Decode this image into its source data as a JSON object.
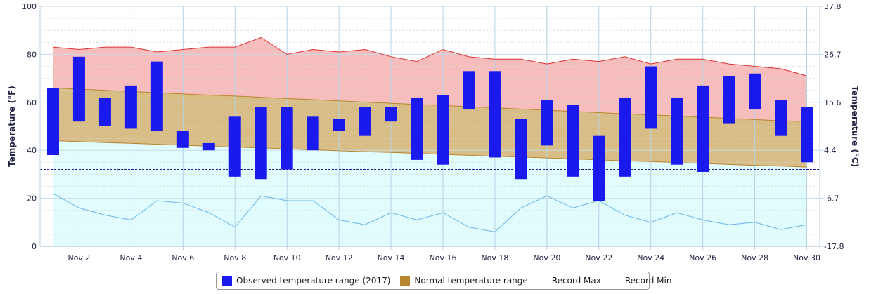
{
  "chart_data": {
    "type": "bar",
    "title": "",
    "ylabel_left": "Temperature (°F)",
    "ylabel_right": "Temperature (°C)",
    "ylim": [
      0,
      100
    ],
    "yticks_left": [
      0,
      20,
      40,
      60,
      80,
      100
    ],
    "yticks_right": [
      "-17.8",
      "-6.7",
      "4.4",
      "15.6",
      "26.7",
      "37.8"
    ],
    "x_tick_labels": [
      "Nov 2",
      "Nov 4",
      "Nov 6",
      "Nov 8",
      "Nov 10",
      "Nov 12",
      "Nov 14",
      "Nov 16",
      "Nov 18",
      "Nov 20",
      "Nov 22",
      "Nov 24",
      "Nov 26",
      "Nov 28",
      "Nov 30"
    ],
    "x_tick_days": [
      2,
      4,
      6,
      8,
      10,
      12,
      14,
      16,
      18,
      20,
      22,
      24,
      26,
      28,
      30
    ],
    "days": [
      1,
      2,
      3,
      4,
      5,
      6,
      7,
      8,
      9,
      10,
      11,
      12,
      13,
      14,
      15,
      16,
      17,
      18,
      19,
      20,
      21,
      22,
      23,
      24,
      25,
      26,
      27,
      28,
      29,
      30
    ],
    "freezing_line_f": 32,
    "grid": true,
    "legend_position": "bottom-center",
    "series": [
      {
        "name": "Observed temperature range (2017)",
        "color": "#1a1aee",
        "low": [
          38,
          52,
          50,
          49,
          48,
          41,
          40,
          29,
          28,
          32,
          40,
          48,
          46,
          52,
          36,
          34,
          57,
          37,
          28,
          42,
          29,
          19,
          29,
          49,
          34,
          31,
          51,
          57,
          46,
          35
        ],
        "high": [
          66,
          79,
          62,
          67,
          77,
          48,
          43,
          54,
          58,
          58,
          54,
          53,
          58,
          58,
          62,
          63,
          73,
          73,
          53,
          61,
          59,
          46,
          62,
          75,
          62,
          67,
          71,
          72,
          61,
          58
        ]
      },
      {
        "name": "Normal temperature range",
        "color": "#b8862e",
        "low": [
          44,
          43.6,
          43.2,
          42.9,
          42.5,
          42.1,
          41.7,
          41.3,
          41,
          40.6,
          40.2,
          39.8,
          39.4,
          39.1,
          38.7,
          38.3,
          37.9,
          37.5,
          37.2,
          36.8,
          36.4,
          36,
          35.6,
          35.3,
          34.9,
          34.5,
          34.1,
          33.7,
          33.4,
          33
        ],
        "high": [
          66,
          65.5,
          65,
          64.5,
          64,
          63.5,
          63,
          62.6,
          62.1,
          61.6,
          61.1,
          60.6,
          60.1,
          59.6,
          59.1,
          58.7,
          58.2,
          57.7,
          57.2,
          56.7,
          56.2,
          55.7,
          55.2,
          54.8,
          54.3,
          53.8,
          53.3,
          52.8,
          52.3,
          52
        ]
      },
      {
        "name": "Record Max",
        "color": "#e03030",
        "values": [
          83,
          82,
          83,
          83,
          81,
          82,
          83,
          83,
          87,
          80,
          82,
          81,
          82,
          79,
          77,
          82,
          79,
          78,
          78,
          76,
          78,
          77,
          79,
          76,
          78,
          78,
          76,
          75,
          74,
          71
        ]
      },
      {
        "name": "Record Min",
        "color": "#6ab4e8",
        "values": [
          22,
          16,
          13,
          11,
          19,
          18,
          14,
          8,
          21,
          19,
          19,
          11,
          9,
          14,
          11,
          14,
          8,
          6,
          16,
          21,
          16,
          19,
          13,
          10,
          14,
          11,
          9,
          10,
          7,
          9
        ]
      }
    ]
  },
  "legend": {
    "observed_label": "Observed temperature range (2017)",
    "normal_label": "Normal temperature range",
    "record_max_label": "Record Max",
    "record_min_label": "Record Min"
  },
  "colors": {
    "observed": "#1a1aee",
    "normal_fill": "#d8bd86",
    "normal_line": "#b8862e",
    "record_max_fill": "#f7bcbc",
    "record_max_line": "#e03030",
    "record_min_fill": "#e0fcfc",
    "record_min_line": "#6ab4e8",
    "freezing_line": "#1a1a99",
    "grid": "#b5d3e6",
    "axis_text": "#222244"
  }
}
